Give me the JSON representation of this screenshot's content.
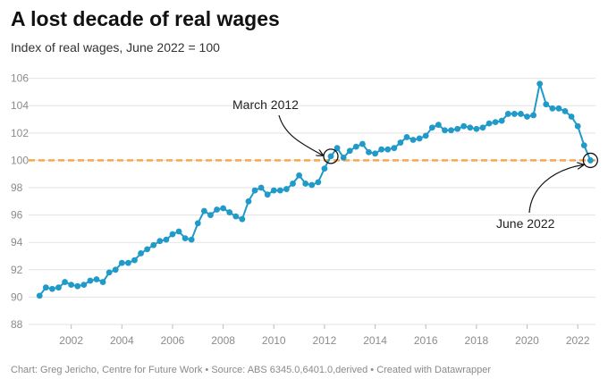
{
  "title": "A lost decade of real wages",
  "subtitle": "Index of real wages, June 2022 = 100",
  "footer": "Chart: Greg Jericho, Centre for Future Work • Source: ABS 6345.0,6401.0,derived • Created with Datawrapper",
  "colors": {
    "line": "#1f9ac9",
    "reference": "#f4a94a",
    "grid": "#e3e3e3"
  },
  "chart_data": {
    "type": "line",
    "title": "A lost decade of real wages",
    "subtitle": "Index of real wages, June 2022 = 100",
    "xlabel": "",
    "ylabel": "",
    "xlim": [
      2000.6,
      2022.7
    ],
    "ylim": [
      88,
      106.5
    ],
    "x_ticks": [
      "2002",
      "2004",
      "2006",
      "2008",
      "2010",
      "2012",
      "2014",
      "2016",
      "2018",
      "2020",
      "2022"
    ],
    "y_ticks": [
      "88",
      "90",
      "92",
      "94",
      "96",
      "98",
      "100",
      "102",
      "104",
      "106"
    ],
    "grid": "horizontal",
    "reference_line": {
      "y": 100,
      "style": "dashed"
    },
    "series": [
      {
        "points": [
          [
            2000.75,
            90.1
          ],
          [
            2001.0,
            90.7
          ],
          [
            2001.25,
            90.6
          ],
          [
            2001.5,
            90.7
          ],
          [
            2001.75,
            91.1
          ],
          [
            2002.0,
            90.9
          ],
          [
            2002.25,
            90.8
          ],
          [
            2002.5,
            90.9
          ],
          [
            2002.75,
            91.2
          ],
          [
            2003.0,
            91.3
          ],
          [
            2003.25,
            91.1
          ],
          [
            2003.5,
            91.8
          ],
          [
            2003.75,
            92.0
          ],
          [
            2004.0,
            92.5
          ],
          [
            2004.25,
            92.5
          ],
          [
            2004.5,
            92.7
          ],
          [
            2004.75,
            93.2
          ],
          [
            2005.0,
            93.5
          ],
          [
            2005.25,
            93.8
          ],
          [
            2005.5,
            94.1
          ],
          [
            2005.75,
            94.2
          ],
          [
            2006.0,
            94.6
          ],
          [
            2006.25,
            94.8
          ],
          [
            2006.5,
            94.3
          ],
          [
            2006.75,
            94.2
          ],
          [
            2007.0,
            95.4
          ],
          [
            2007.25,
            96.3
          ],
          [
            2007.5,
            96.0
          ],
          [
            2007.75,
            96.4
          ],
          [
            2008.0,
            96.5
          ],
          [
            2008.25,
            96.2
          ],
          [
            2008.5,
            95.9
          ],
          [
            2008.75,
            95.7
          ],
          [
            2009.0,
            97.0
          ],
          [
            2009.25,
            97.8
          ],
          [
            2009.5,
            98.0
          ],
          [
            2009.75,
            97.5
          ],
          [
            2010.0,
            97.8
          ],
          [
            2010.25,
            97.8
          ],
          [
            2010.5,
            97.9
          ],
          [
            2010.75,
            98.3
          ],
          [
            2011.0,
            98.9
          ],
          [
            2011.25,
            98.3
          ],
          [
            2011.5,
            98.2
          ],
          [
            2011.75,
            98.4
          ],
          [
            2012.0,
            99.4
          ],
          [
            2012.25,
            100.3
          ],
          [
            2012.5,
            100.9
          ],
          [
            2012.75,
            100.2
          ],
          [
            2013.0,
            100.7
          ],
          [
            2013.25,
            101.0
          ],
          [
            2013.5,
            101.2
          ],
          [
            2013.75,
            100.6
          ],
          [
            2014.0,
            100.5
          ],
          [
            2014.25,
            100.8
          ],
          [
            2014.5,
            100.8
          ],
          [
            2014.75,
            100.9
          ],
          [
            2015.0,
            101.3
          ],
          [
            2015.25,
            101.7
          ],
          [
            2015.5,
            101.5
          ],
          [
            2015.75,
            101.6
          ],
          [
            2016.0,
            101.8
          ],
          [
            2016.25,
            102.4
          ],
          [
            2016.5,
            102.6
          ],
          [
            2016.75,
            102.2
          ],
          [
            2017.0,
            102.2
          ],
          [
            2017.25,
            102.3
          ],
          [
            2017.5,
            102.5
          ],
          [
            2017.75,
            102.4
          ],
          [
            2018.0,
            102.3
          ],
          [
            2018.25,
            102.4
          ],
          [
            2018.5,
            102.7
          ],
          [
            2018.75,
            102.8
          ],
          [
            2019.0,
            102.9
          ],
          [
            2019.25,
            103.4
          ],
          [
            2019.5,
            103.4
          ],
          [
            2019.75,
            103.4
          ],
          [
            2020.0,
            103.2
          ],
          [
            2020.25,
            103.3
          ],
          [
            2020.5,
            105.6
          ],
          [
            2020.75,
            104.1
          ],
          [
            2021.0,
            103.8
          ],
          [
            2021.25,
            103.8
          ],
          [
            2021.5,
            103.6
          ],
          [
            2021.75,
            103.2
          ],
          [
            2022.0,
            102.5
          ],
          [
            2022.25,
            101.1
          ],
          [
            2022.5,
            100.0
          ]
        ]
      }
    ],
    "annotations": [
      {
        "label": "March 2012",
        "x": 2012.25,
        "y": 100.3
      },
      {
        "label": "June 2022",
        "x": 2022.5,
        "y": 100.0
      }
    ]
  }
}
